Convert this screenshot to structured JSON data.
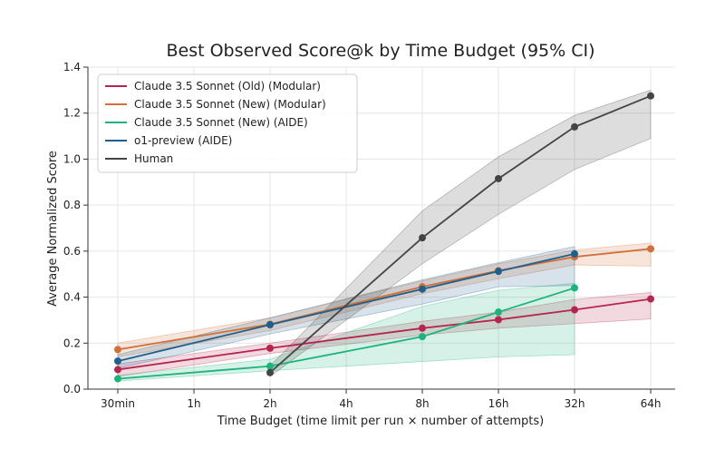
{
  "chart_data": {
    "type": "line",
    "title": "Best Observed Score@k by Time Budget (95% CI)",
    "xlabel": "Time Budget (time limit per run × number of attempts)",
    "ylabel": "Average Normalized Score",
    "categories": [
      "30min",
      "1h",
      "2h",
      "4h",
      "8h",
      "16h",
      "32h",
      "64h"
    ],
    "ylim": [
      0.0,
      1.4
    ],
    "yticks": [
      "0.0",
      "0.2",
      "0.4",
      "0.6",
      "0.8",
      "1.0",
      "1.2",
      "1.4"
    ],
    "grid": true,
    "legend_position": "top-left",
    "series": [
      {
        "name": "Claude 3.5 Sonnet (Old) (Modular)",
        "color": "#b5264f",
        "x": [
          "30min",
          "2h",
          "8h",
          "16h",
          "32h",
          "64h"
        ],
        "values": [
          0.085,
          0.178,
          0.265,
          0.302,
          0.345,
          0.392
        ],
        "ci_low": [
          0.055,
          0.155,
          0.235,
          0.265,
          0.285,
          0.305
        ],
        "ci_high": [
          0.11,
          0.2,
          0.295,
          0.335,
          0.39,
          0.42
        ]
      },
      {
        "name": "Claude 3.5 Sonnet (New) (Modular)",
        "color": "#d0703a",
        "x": [
          "30min",
          "2h",
          "8h",
          "16h",
          "32h",
          "64h"
        ],
        "values": [
          0.172,
          0.282,
          0.445,
          0.515,
          0.575,
          0.61
        ],
        "ci_low": [
          0.14,
          0.255,
          0.415,
          0.48,
          0.54,
          0.535
        ],
        "ci_high": [
          0.2,
          0.31,
          0.47,
          0.545,
          0.605,
          0.635
        ]
      },
      {
        "name": "Claude 3.5 Sonnet (New) (AIDE)",
        "color": "#1eb37a",
        "x": [
          "30min",
          "2h",
          "8h",
          "16h",
          "32h"
        ],
        "values": [
          0.045,
          0.1,
          0.228,
          0.335,
          0.44
        ],
        "ci_low": [
          0.035,
          0.08,
          0.12,
          0.14,
          0.15
        ],
        "ci_high": [
          0.06,
          0.13,
          0.36,
          0.43,
          0.46
        ]
      },
      {
        "name": "o1-preview (AIDE)",
        "color": "#1f5f8b",
        "x": [
          "30min",
          "2h",
          "8h",
          "16h",
          "32h"
        ],
        "values": [
          0.122,
          0.28,
          0.435,
          0.512,
          0.588
        ],
        "ci_low": [
          0.09,
          0.24,
          0.37,
          0.445,
          0.45
        ],
        "ci_high": [
          0.15,
          0.31,
          0.475,
          0.55,
          0.62
        ]
      },
      {
        "name": "Human",
        "color": "#444444",
        "x": [
          "2h",
          "8h",
          "16h",
          "32h",
          "64h"
        ],
        "values": [
          0.072,
          0.658,
          0.915,
          1.14,
          1.275
        ],
        "ci_low": [
          0.055,
          0.545,
          0.76,
          0.955,
          1.09
        ],
        "ci_high": [
          0.1,
          0.775,
          1.01,
          1.19,
          1.3
        ]
      }
    ]
  }
}
